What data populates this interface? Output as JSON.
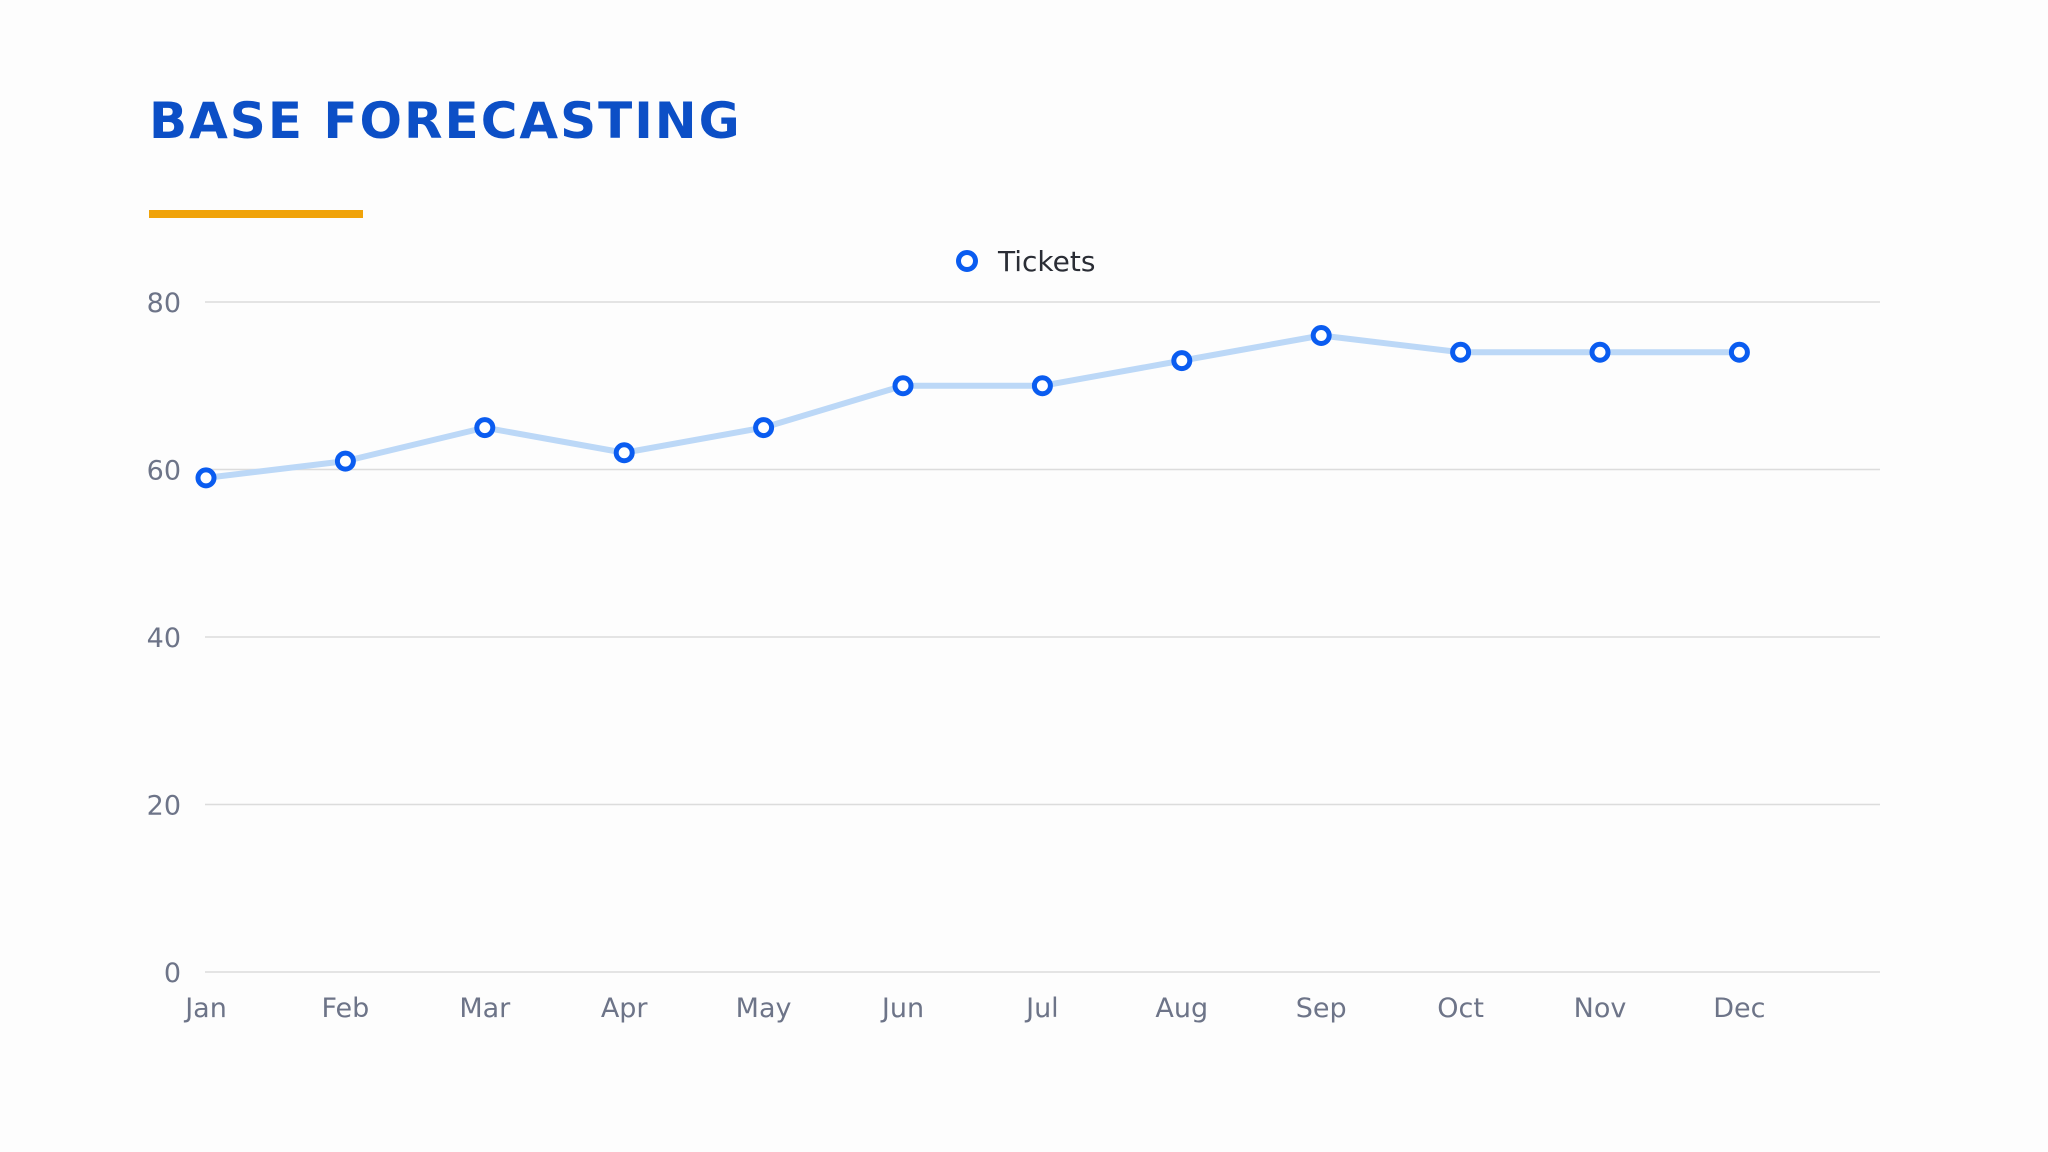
{
  "slide": {
    "title": "BASE FORECASTING"
  },
  "colors": {
    "title": "#0c4fc6",
    "accent_bar": "#f0a30a",
    "line": "#bcd8f7",
    "marker": "#0a5cf0",
    "grid": "#dcdcdc"
  },
  "chart_data": {
    "type": "line",
    "categories": [
      "Jan",
      "Feb",
      "Mar",
      "Apr",
      "May",
      "Jun",
      "Jul",
      "Aug",
      "Sep",
      "Oct",
      "Nov",
      "Dec"
    ],
    "series": [
      {
        "name": "Tickets",
        "values": [
          59,
          61,
          65,
          62,
          65,
          70,
          70,
          73,
          76,
          74,
          74,
          74
        ]
      }
    ],
    "ylim": [
      0,
      80
    ],
    "yticks": [
      0,
      20,
      40,
      60,
      80
    ],
    "grid": true,
    "legend": "top-center",
    "title": "",
    "xlabel": "",
    "ylabel": ""
  }
}
